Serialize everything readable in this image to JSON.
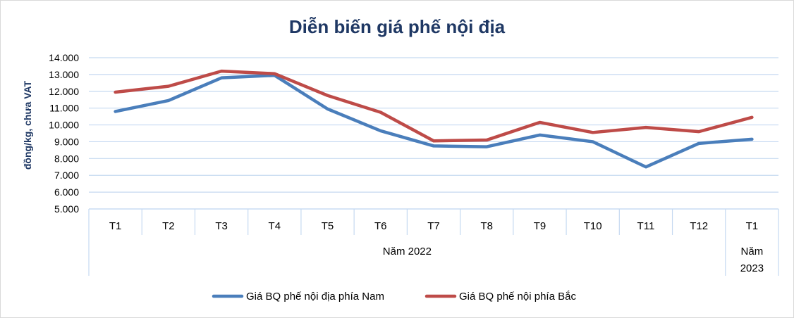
{
  "chart_data": {
    "type": "line",
    "title": "Diễn biến giá phế nội địa",
    "ylabel": "đồng/kg, chưa VAT",
    "xlabel": "",
    "ylim": [
      5000,
      14000
    ],
    "yticks": [
      "14.000",
      "13.000",
      "12.000",
      "11.000",
      "10.000",
      "9.000",
      "8.000",
      "7.000",
      "6.000",
      "5.000"
    ],
    "ytick_values": [
      14000,
      13000,
      12000,
      11000,
      10000,
      9000,
      8000,
      7000,
      6000,
      5000
    ],
    "categories": [
      "T1",
      "T2",
      "T3",
      "T4",
      "T5",
      "T6",
      "T7",
      "T8",
      "T9",
      "T10",
      "T11",
      "T12",
      "T1"
    ],
    "groups": [
      {
        "label": "Năm 2022",
        "start": 0,
        "end": 11
      },
      {
        "label": "Năm\n2023",
        "start": 12,
        "end": 12
      }
    ],
    "series": [
      {
        "name": "Giá BQ phế nội địa phía Nam",
        "color": "#4a7ebb",
        "values": [
          10800,
          11450,
          12800,
          12950,
          10950,
          9650,
          8750,
          8700,
          9400,
          9000,
          7500,
          8900,
          9150
        ]
      },
      {
        "name": "Giá BQ phế nội phía Bắc",
        "color": "#be4b48",
        "values": [
          11950,
          12300,
          13200,
          13050,
          11750,
          10750,
          9050,
          9100,
          10150,
          9550,
          9850,
          9600,
          10450
        ]
      }
    ],
    "grid": true,
    "legend_position": "bottom"
  }
}
